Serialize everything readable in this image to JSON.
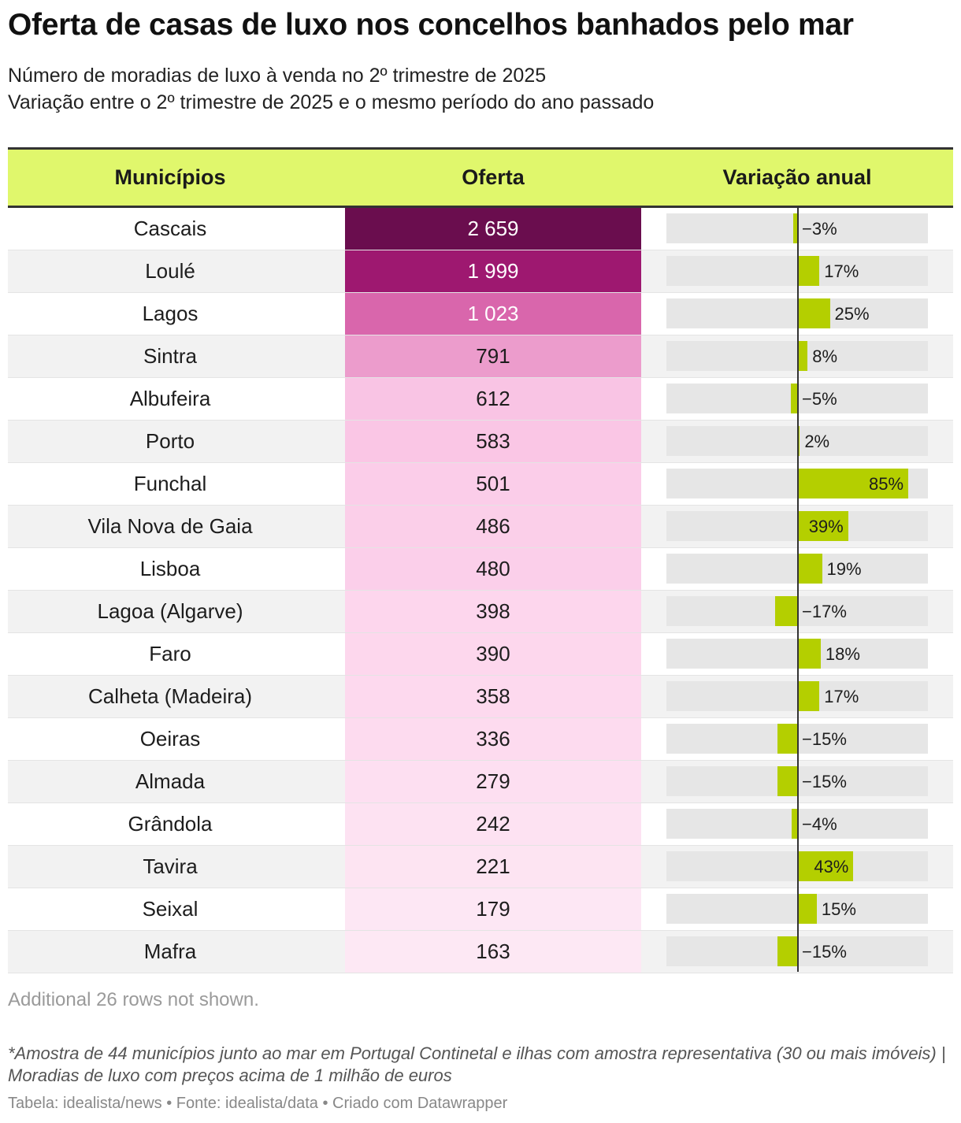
{
  "title": "Oferta de casas de luxo nos concelhos banhados pelo mar",
  "subtitle_line1": "Número de moradias de luxo à venda no 2º trimestre de 2025",
  "subtitle_line2": "Variação entre o 2º trimestre de 2025 e o mesmo período do ano passado",
  "columns": {
    "municipios": "Municípios",
    "oferta": "Oferta",
    "variacao": "Variação anual"
  },
  "colors": {
    "header_bg": "#e0f76c",
    "bar_positive": "#b4cf00",
    "bar_track": "#e6e6e6",
    "heat_max": "#6a0d4e",
    "heat_min": "#fde8f4"
  },
  "chart_data": {
    "type": "table",
    "title": "Oferta de casas de luxo nos concelhos banhados pelo mar",
    "columns": [
      "Municípios",
      "Oferta",
      "Variação anual"
    ],
    "variation_range": [
      -50,
      100
    ],
    "rows": [
      {
        "name": "Cascais",
        "offer_label": "2 659",
        "offer": 2659,
        "variation_label": "−3%",
        "variation": -3
      },
      {
        "name": "Loulé",
        "offer_label": "1 999",
        "offer": 1999,
        "variation_label": "17%",
        "variation": 17
      },
      {
        "name": "Lagos",
        "offer_label": "1 023",
        "offer": 1023,
        "variation_label": "25%",
        "variation": 25
      },
      {
        "name": "Sintra",
        "offer_label": "791",
        "offer": 791,
        "variation_label": "8%",
        "variation": 8
      },
      {
        "name": "Albufeira",
        "offer_label": "612",
        "offer": 612,
        "variation_label": "−5%",
        "variation": -5
      },
      {
        "name": "Porto",
        "offer_label": "583",
        "offer": 583,
        "variation_label": "2%",
        "variation": 2
      },
      {
        "name": "Funchal",
        "offer_label": "501",
        "offer": 501,
        "variation_label": "85%",
        "variation": 85
      },
      {
        "name": "Vila Nova de Gaia",
        "offer_label": "486",
        "offer": 486,
        "variation_label": "39%",
        "variation": 39
      },
      {
        "name": "Lisboa",
        "offer_label": "480",
        "offer": 480,
        "variation_label": "19%",
        "variation": 19
      },
      {
        "name": "Lagoa (Algarve)",
        "offer_label": "398",
        "offer": 398,
        "variation_label": "−17%",
        "variation": -17
      },
      {
        "name": "Faro",
        "offer_label": "390",
        "offer": 390,
        "variation_label": "18%",
        "variation": 18
      },
      {
        "name": "Calheta (Madeira)",
        "offer_label": "358",
        "offer": 358,
        "variation_label": "17%",
        "variation": 17
      },
      {
        "name": "Oeiras",
        "offer_label": "336",
        "offer": 336,
        "variation_label": "−15%",
        "variation": -15
      },
      {
        "name": "Almada",
        "offer_label": "279",
        "offer": 279,
        "variation_label": "−15%",
        "variation": -15
      },
      {
        "name": "Grândola",
        "offer_label": "242",
        "offer": 242,
        "variation_label": "−4%",
        "variation": -4
      },
      {
        "name": "Tavira",
        "offer_label": "221",
        "offer": 221,
        "variation_label": "43%",
        "variation": 43
      },
      {
        "name": "Seixal",
        "offer_label": "179",
        "offer": 179,
        "variation_label": "15%",
        "variation": 15
      },
      {
        "name": "Mafra",
        "offer_label": "163",
        "offer": 163,
        "variation_label": "−15%",
        "variation": -15
      }
    ]
  },
  "note": "Additional 26 rows not shown.",
  "footnote": "*Amostra de 44 municípios junto ao mar em Portugal Continetal e ilhas com amostra representativa (30 ou mais imóveis) | Moradias de luxo com preços acima de 1 milhão de euros",
  "credits": "Tabela: idealista/news • Fonte: idealista/data • Criado com Datawrapper"
}
